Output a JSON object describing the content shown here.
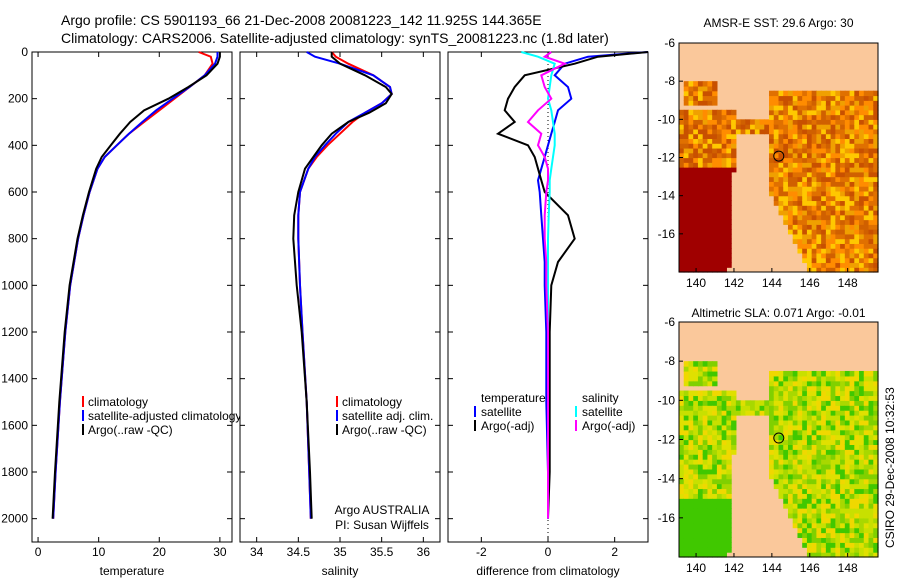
{
  "header": {
    "line1": "Argo profile: CS 5901193_66 21-Dec-2008 20081223_142 11.925S 144.365E",
    "line2": "Climatology: CARS2006. Satellite-adjusted climatology: synTS_20081223.nc (1.8d later)"
  },
  "side_label": "CSIRO 29-Dec-2008 10:32:53",
  "colors": {
    "climatology": "#ff0000",
    "satellite": "#0000ff",
    "argo": "#000000",
    "sal_satellite": "#00ffff",
    "sal_argo": "#ff00ff",
    "land": "#fac89b"
  },
  "chart_data": [
    {
      "type": "line",
      "xlabel": "temperature",
      "ylabel": "",
      "xlim": [
        -1,
        32
      ],
      "ylim": [
        2100,
        0
      ],
      "xticks": [
        "0",
        "10",
        "20",
        "30"
      ],
      "xtickvals": [
        0,
        10,
        20,
        30
      ],
      "yticks": [
        "0",
        "200",
        "400",
        "600",
        "800",
        "1000",
        "1200",
        "1400",
        "1600",
        "1800",
        "2000"
      ],
      "legend": [
        "climatology",
        "satellite-adjusted climatology",
        "Argo(..raw -QC)"
      ],
      "depth": [
        0,
        20,
        50,
        100,
        150,
        200,
        250,
        300,
        350,
        400,
        450,
        500,
        600,
        700,
        800,
        1000,
        1200,
        1500,
        1800,
        2000
      ],
      "series": [
        {
          "name": "climatology",
          "color": "#ff0000",
          "values": [
            26.5,
            28.5,
            28.8,
            27.5,
            25,
            22.5,
            20,
            17.5,
            15,
            13,
            11,
            9.8,
            8.5,
            7.5,
            6.6,
            5.3,
            4.5,
            3.6,
            2.9,
            2.5
          ]
        },
        {
          "name": "satellite-adjusted climatology",
          "color": "#0000ff",
          "values": [
            29.6,
            29.6,
            29.2,
            27.5,
            25,
            22.2,
            19.5,
            17.2,
            15,
            13,
            11,
            9.8,
            8.5,
            7.5,
            6.6,
            5.3,
            4.5,
            3.6,
            2.9,
            2.5
          ]
        },
        {
          "name": "Argo(..raw -QC)",
          "color": "#000000",
          "values": [
            30,
            30,
            29.6,
            27.8,
            24.8,
            21.5,
            17.5,
            15.2,
            13.5,
            12,
            10.5,
            9.6,
            8.4,
            7.4,
            6.5,
            5.2,
            4.4,
            3.5,
            2.8,
            2.4
          ]
        }
      ]
    },
    {
      "type": "line",
      "xlabel": "salinity",
      "xlim": [
        33.8,
        36.2
      ],
      "ylim": [
        2100,
        0
      ],
      "xticks": [
        "34",
        "34.5",
        "35",
        "35.5",
        "36"
      ],
      "xtickvals": [
        34,
        34.5,
        35,
        35.5,
        36
      ],
      "legend": [
        "climatology",
        "satellite adj. clim.",
        "Argo(..raw -QC)"
      ],
      "annotation": [
        "Argo AUSTRALIA",
        "PI: Susan Wijffels"
      ],
      "depth": [
        0,
        20,
        50,
        100,
        150,
        180,
        220,
        260,
        300,
        350,
        400,
        450,
        500,
        600,
        700,
        800,
        1000,
        1200,
        1500,
        1800,
        2000
      ],
      "series": [
        {
          "name": "climatology",
          "color": "#ff0000",
          "values": [
            34.9,
            34.95,
            35.1,
            35.4,
            35.6,
            35.62,
            35.5,
            35.3,
            35.15,
            35.0,
            34.85,
            34.72,
            34.62,
            34.52,
            34.5,
            34.5,
            34.52,
            34.55,
            34.6,
            34.63,
            34.65
          ]
        },
        {
          "name": "satellite adj. clim.",
          "color": "#0000ff",
          "values": [
            34.6,
            34.7,
            35.0,
            35.4,
            35.6,
            35.62,
            35.5,
            35.3,
            35.1,
            34.95,
            34.82,
            34.7,
            34.62,
            34.52,
            34.5,
            34.5,
            34.52,
            34.55,
            34.6,
            34.63,
            34.65
          ]
        },
        {
          "name": "Argo(..raw -QC)",
          "color": "#000000",
          "values": [
            34.9,
            34.9,
            35.0,
            35.3,
            35.55,
            35.62,
            35.55,
            35.35,
            35.1,
            34.9,
            34.78,
            34.68,
            34.58,
            34.5,
            34.45,
            34.44,
            34.48,
            34.54,
            34.6,
            34.64,
            34.66
          ]
        }
      ]
    },
    {
      "type": "line",
      "xlabel": "difference from climatology",
      "xlim": [
        -3,
        3
      ],
      "ylim": [
        2100,
        0
      ],
      "xticks": [
        "-2",
        "0",
        "2"
      ],
      "xtickvals": [
        -2,
        0,
        2
      ],
      "legend_titles": [
        "temperature",
        "salinity"
      ],
      "legend": [
        "satellite",
        "Argo(-adj)",
        "satellite",
        "Argo(-adj)"
      ],
      "depth": [
        0,
        20,
        50,
        100,
        150,
        200,
        250,
        300,
        350,
        400,
        450,
        500,
        550,
        600,
        700,
        800,
        900,
        1000,
        1200,
        1500,
        1800,
        2000
      ],
      "series": [
        {
          "name": "temperature satellite",
          "color": "#0000ff",
          "values": [
            3,
            1.2,
            0.5,
            0.2,
            0.6,
            0.7,
            0.3,
            0.2,
            0.1,
            0,
            -0.1,
            -0.2,
            -0.3,
            -0.25,
            -0.2,
            -0.15,
            -0.1,
            -0.1,
            -0.05,
            -0.05,
            0,
            0
          ]
        },
        {
          "name": "temperature Argo(-adj)",
          "color": "#000000",
          "values": [
            3,
            1.5,
            0.8,
            -0.7,
            -1.0,
            -1.2,
            -1.3,
            -1.0,
            -1.5,
            -0.6,
            -0.4,
            -0.3,
            -0.2,
            -0.1,
            0.6,
            0.8,
            0.3,
            0.1,
            0.05,
            0.05,
            0.05,
            0
          ]
        },
        {
          "name": "salinity satellite",
          "color": "#00ffff",
          "values": [
            -0.8,
            -0.3,
            0.2,
            0.1,
            0.05,
            0,
            0.1,
            0.15,
            0.2,
            0.2,
            0.15,
            0.1,
            0.05,
            0.05,
            0.02,
            0,
            0,
            0,
            0,
            0,
            0,
            0
          ]
        },
        {
          "name": "salinity Argo(-adj)",
          "color": "#ff00ff",
          "values": [
            0.1,
            -0.1,
            0.5,
            -0.2,
            -0.1,
            0.1,
            -0.3,
            -0.6,
            -0.2,
            -0.3,
            -0.1,
            0,
            0,
            -0.05,
            -0.1,
            -0.1,
            -0.05,
            -0.05,
            0,
            0,
            0,
            0
          ]
        }
      ]
    },
    {
      "type": "heatmap",
      "title": "AMSR-E SST: 29.6 Argo: 30",
      "xticks": [
        "140",
        "142",
        "144",
        "146",
        "148"
      ],
      "yticks": [
        "-6",
        "-8",
        "-10",
        "-12",
        "-14",
        "-16"
      ],
      "xlim": [
        139.1,
        149.6
      ],
      "ylim": [
        -18,
        -6
      ],
      "profile_location": [
        144.365,
        -11.925
      ]
    },
    {
      "type": "heatmap",
      "title": "Altimetric SLA: 0.071 Argo: -0.01",
      "xticks": [
        "140",
        "142",
        "144",
        "146",
        "148"
      ],
      "yticks": [
        "-6",
        "-8",
        "-10",
        "-12",
        "-14",
        "-16"
      ],
      "xlim": [
        139.1,
        149.6
      ],
      "ylim": [
        -18,
        -6
      ],
      "profile_location": [
        144.365,
        -11.925
      ]
    }
  ]
}
